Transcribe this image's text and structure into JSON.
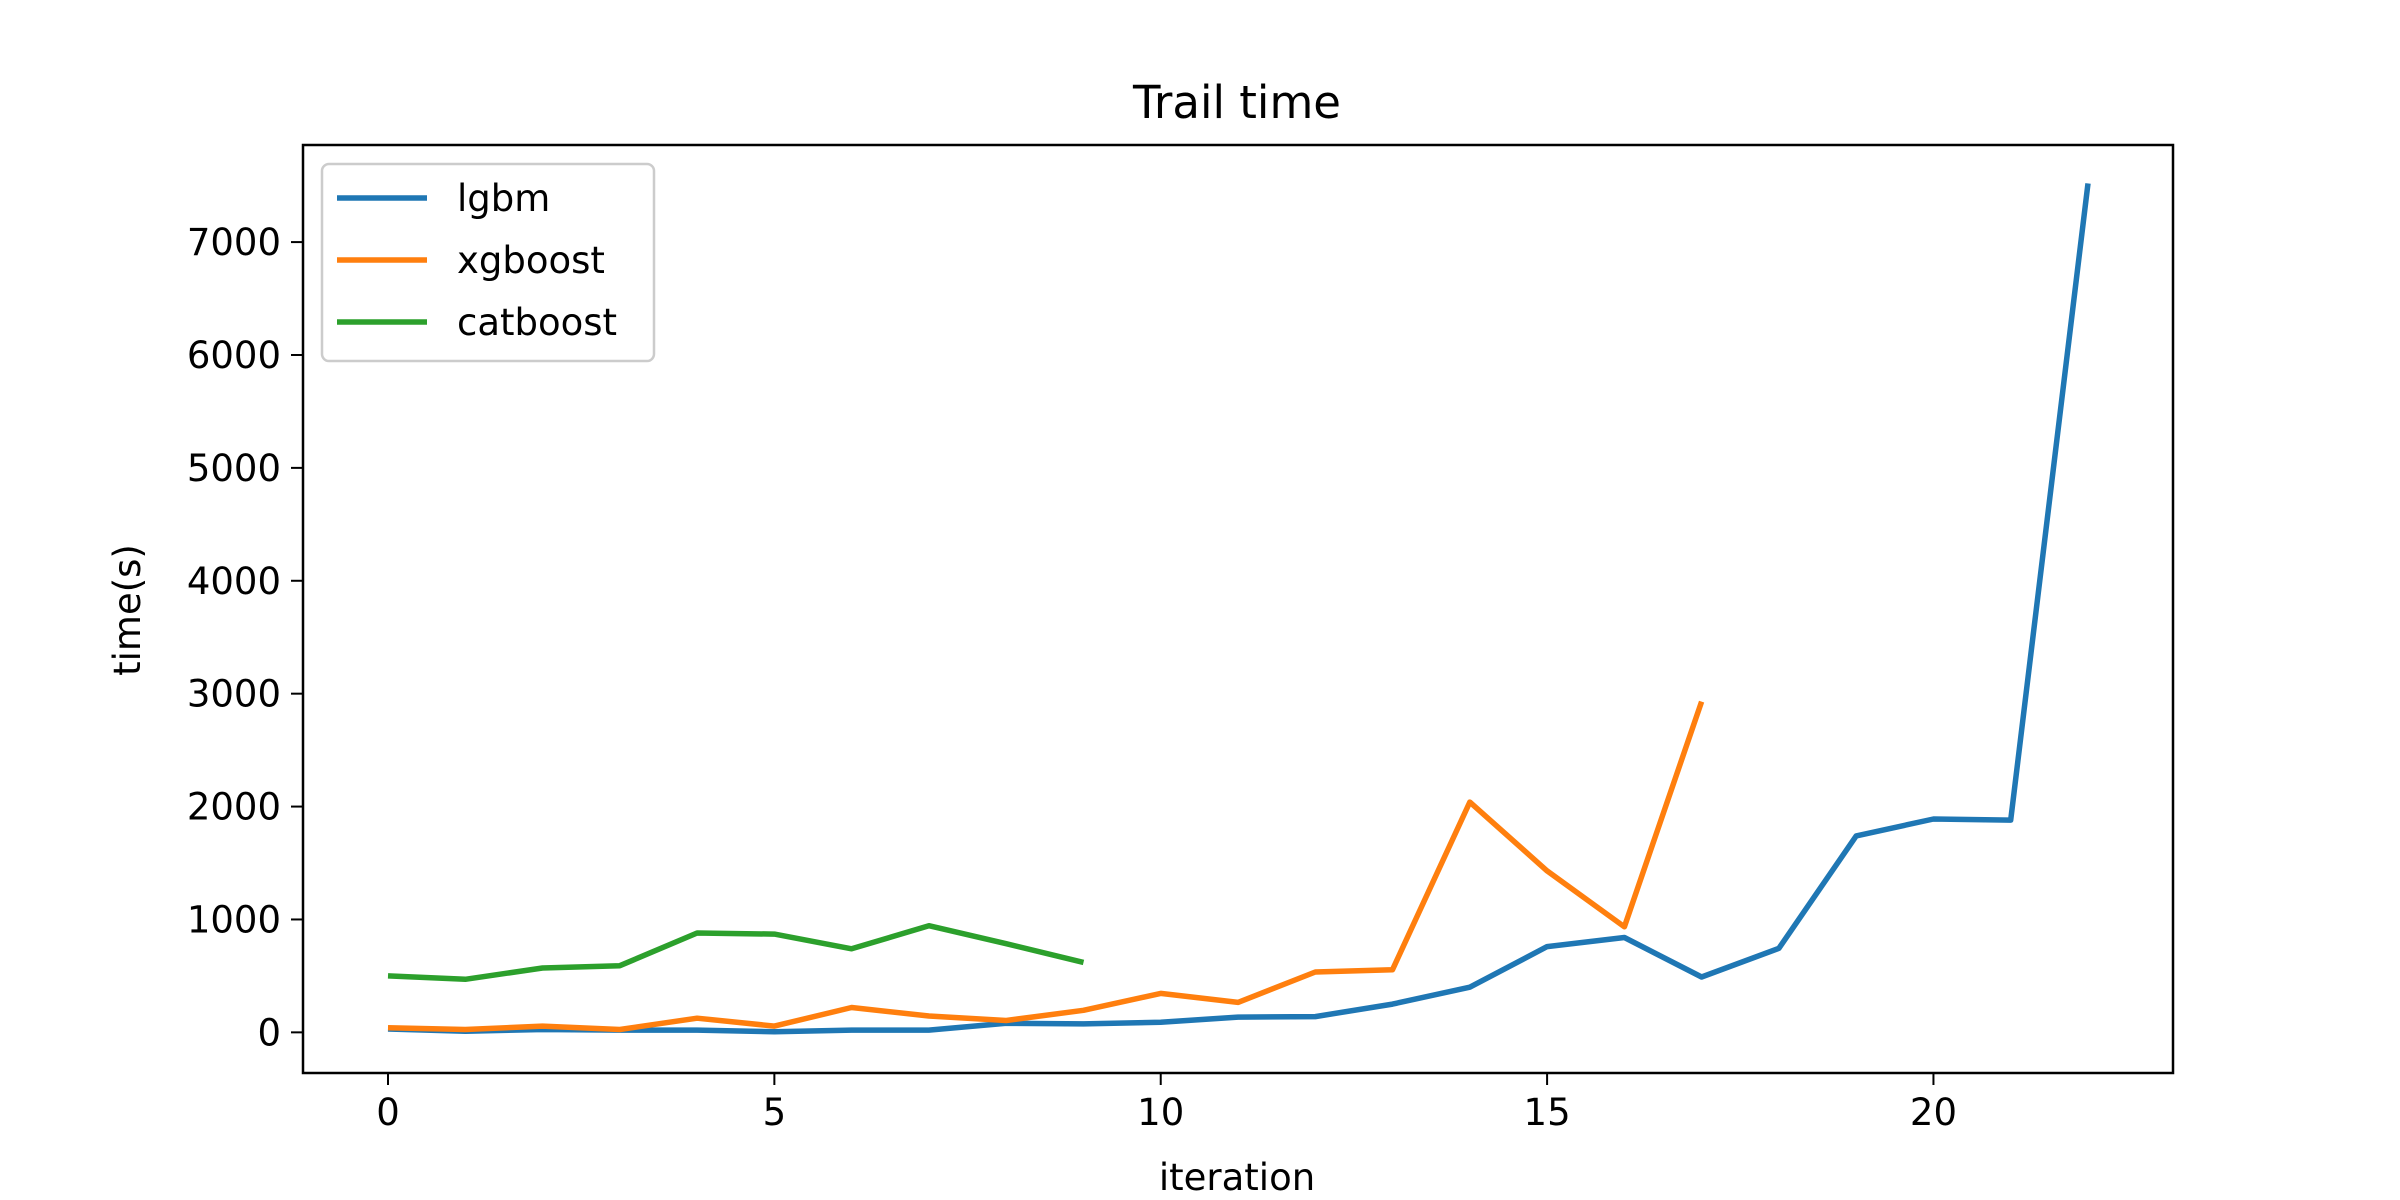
{
  "chart_data": {
    "type": "line",
    "title": "Trail time",
    "xlabel": "iteration",
    "ylabel": "time(s)",
    "xlim": [
      -1.1,
      23.1
    ],
    "ylim": [
      -360,
      7860
    ],
    "xticks": [
      0,
      5,
      10,
      15,
      20
    ],
    "yticks": [
      0,
      1000,
      2000,
      3000,
      4000,
      5000,
      6000,
      7000
    ],
    "grid": false,
    "legend_position": "top-left",
    "series": [
      {
        "name": "lgbm",
        "color": "#1f77b4",
        "x": [
          0,
          1,
          2,
          3,
          4,
          5,
          6,
          7,
          8,
          9,
          10,
          11,
          12,
          13,
          14,
          15,
          16,
          17,
          18,
          19,
          20,
          21,
          22
        ],
        "y": [
          30,
          10,
          25,
          20,
          20,
          5,
          20,
          20,
          80,
          75,
          90,
          135,
          140,
          250,
          400,
          760,
          840,
          490,
          745,
          1740,
          1890,
          1880,
          7520
        ]
      },
      {
        "name": "xgboost",
        "color": "#ff7f0e",
        "x": [
          0,
          1,
          2,
          3,
          4,
          5,
          6,
          7,
          8,
          9,
          10,
          11,
          12,
          13,
          14,
          15,
          16,
          17
        ],
        "y": [
          40,
          25,
          55,
          25,
          125,
          55,
          220,
          145,
          105,
          195,
          345,
          265,
          535,
          555,
          2040,
          1430,
          935,
          2930
        ]
      },
      {
        "name": "catboost",
        "color": "#2ca02c",
        "x": [
          0,
          1,
          2,
          3,
          4,
          5,
          6,
          7,
          8,
          9
        ],
        "y": [
          500,
          470,
          570,
          590,
          880,
          870,
          740,
          945,
          785,
          620
        ]
      }
    ]
  }
}
